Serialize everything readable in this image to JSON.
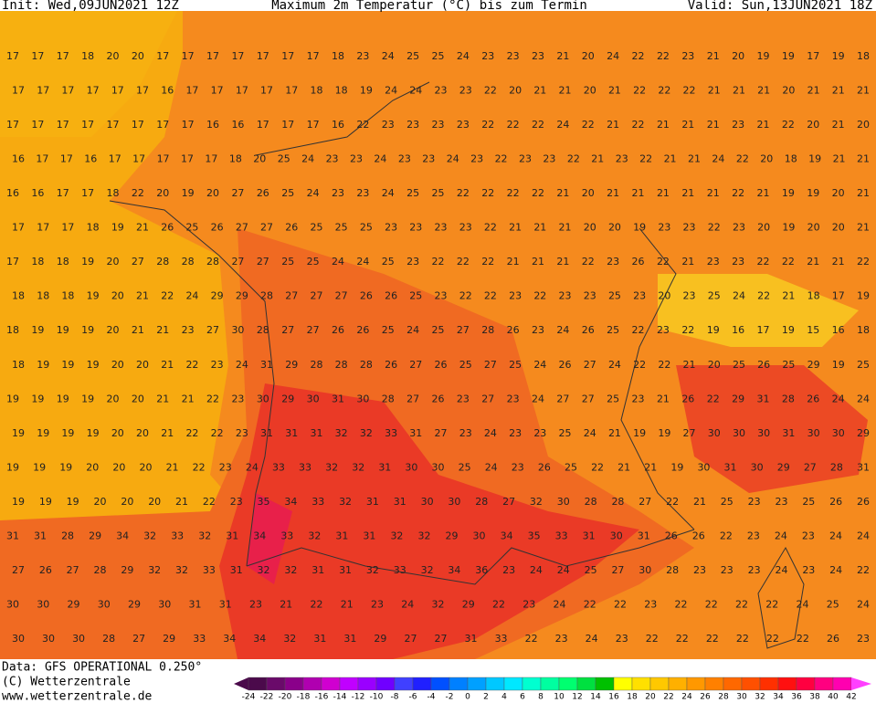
{
  "header": {
    "init": "Init: Wed,09JUN2021 12Z",
    "title": "Maximum 2m Temperatur (°C) bis zum Termin",
    "valid": "Valid: Sun,13JUN2021 18Z"
  },
  "footer": {
    "data": "Data: GFS OPERATIONAL 0.250°",
    "copyright": "(C) Wetterzentrale",
    "url": "www.wetterzentrale.de"
  },
  "map": {
    "rows": [
      [
        17,
        17,
        17,
        18,
        20,
        20,
        17,
        17,
        17,
        17,
        17,
        17,
        17,
        18,
        23,
        24,
        25,
        25,
        24,
        23,
        23,
        23,
        21,
        20,
        24,
        22,
        22,
        23,
        21,
        20,
        19,
        19,
        17,
        19,
        18
      ],
      [
        17,
        17,
        17,
        17,
        17,
        17,
        16,
        17,
        17,
        17,
        17,
        17,
        18,
        18,
        19,
        24,
        24,
        23,
        23,
        22,
        20,
        21,
        21,
        20,
        21,
        22,
        22,
        22,
        21,
        21,
        21,
        20,
        21,
        21,
        21
      ],
      [
        17,
        17,
        17,
        17,
        17,
        17,
        17,
        17,
        16,
        16,
        17,
        17,
        17,
        16,
        22,
        23,
        23,
        23,
        23,
        22,
        22,
        22,
        24,
        22,
        21,
        22,
        21,
        21,
        21,
        23,
        21,
        22,
        20,
        21,
        20
      ],
      [
        16,
        17,
        17,
        16,
        17,
        17,
        17,
        17,
        17,
        18,
        20,
        25,
        24,
        23,
        23,
        24,
        23,
        23,
        24,
        23,
        22,
        23,
        23,
        22,
        21,
        23,
        22,
        21,
        21,
        24,
        22,
        20,
        18,
        19,
        21,
        21
      ],
      [
        16,
        16,
        17,
        17,
        18,
        22,
        20,
        19,
        20,
        27,
        26,
        25,
        24,
        23,
        23,
        24,
        25,
        25,
        22,
        22,
        22,
        22,
        21,
        20,
        21,
        21,
        21,
        21,
        21,
        22,
        21,
        19,
        19,
        20,
        21
      ],
      [
        17,
        17,
        17,
        18,
        19,
        21,
        26,
        25,
        26,
        27,
        27,
        26,
        25,
        25,
        25,
        23,
        23,
        23,
        23,
        22,
        21,
        21,
        21,
        20,
        20,
        19,
        23,
        23,
        22,
        23,
        20,
        19,
        20,
        20,
        21
      ],
      [
        17,
        18,
        18,
        19,
        20,
        27,
        28,
        28,
        28,
        27,
        27,
        25,
        25,
        24,
        24,
        25,
        23,
        22,
        22,
        22,
        21,
        21,
        21,
        22,
        23,
        26,
        22,
        21,
        23,
        23,
        22,
        22,
        21,
        21,
        22
      ],
      [
        18,
        18,
        18,
        19,
        20,
        21,
        22,
        24,
        29,
        29,
        28,
        27,
        27,
        27,
        26,
        26,
        25,
        23,
        22,
        22,
        23,
        22,
        23,
        23,
        25,
        23,
        20,
        23,
        25,
        24,
        22,
        21,
        18,
        17,
        19
      ],
      [
        18,
        19,
        19,
        19,
        20,
        21,
        21,
        23,
        27,
        30,
        28,
        27,
        27,
        26,
        26,
        25,
        24,
        25,
        27,
        28,
        26,
        23,
        24,
        26,
        25,
        22,
        23,
        22,
        19,
        16,
        17,
        19,
        15,
        16,
        18
      ],
      [
        18,
        19,
        19,
        19,
        20,
        20,
        21,
        22,
        23,
        24,
        31,
        29,
        28,
        28,
        28,
        26,
        27,
        26,
        25,
        27,
        25,
        24,
        26,
        27,
        24,
        22,
        22,
        21,
        20,
        25,
        26,
        25,
        29,
        19,
        25
      ],
      [
        19,
        19,
        19,
        19,
        20,
        20,
        21,
        21,
        22,
        23,
        30,
        29,
        30,
        31,
        30,
        28,
        27,
        26,
        23,
        27,
        23,
        24,
        27,
        27,
        25,
        23,
        21,
        26,
        22,
        29,
        31,
        28,
        26,
        24,
        24
      ],
      [
        19,
        19,
        19,
        19,
        20,
        20,
        21,
        22,
        22,
        23,
        31,
        31,
        31,
        32,
        32,
        33,
        31,
        27,
        23,
        24,
        23,
        23,
        25,
        24,
        21,
        19,
        19,
        27,
        30,
        30,
        30,
        31,
        30,
        30,
        29
      ],
      [
        19,
        19,
        19,
        20,
        20,
        20,
        21,
        22,
        23,
        24,
        33,
        33,
        32,
        32,
        31,
        30,
        30,
        25,
        24,
        23,
        26,
        25,
        22,
        21,
        21,
        19,
        30,
        31,
        30,
        29,
        27,
        28,
        31
      ],
      [
        19,
        19,
        19,
        20,
        20,
        20,
        21,
        22,
        23,
        35,
        34,
        33,
        32,
        31,
        31,
        30,
        30,
        28,
        27,
        32,
        30,
        28,
        28,
        27,
        22,
        21,
        25,
        23,
        23,
        25,
        26,
        26
      ],
      [
        31,
        31,
        28,
        29,
        34,
        32,
        33,
        32,
        31,
        34,
        33,
        32,
        31,
        31,
        32,
        32,
        29,
        30,
        34,
        35,
        33,
        31,
        30,
        31,
        26,
        26,
        22,
        23,
        24,
        23,
        24,
        24
      ],
      [
        27,
        26,
        27,
        28,
        29,
        32,
        32,
        33,
        31,
        32,
        32,
        31,
        31,
        32,
        33,
        32,
        34,
        36,
        23,
        24,
        24,
        25,
        27,
        30,
        28,
        23,
        23,
        23,
        24,
        23,
        24,
        22
      ],
      [
        30,
        30,
        29,
        30,
        29,
        30,
        31,
        31,
        23,
        21,
        22,
        21,
        23,
        24,
        32,
        29,
        22,
        23,
        24,
        22,
        22,
        23,
        22,
        22,
        22,
        22,
        24,
        25,
        24
      ],
      [
        30,
        30,
        30,
        28,
        27,
        29,
        33,
        34,
        34,
        32,
        31,
        31,
        29,
        27,
        27,
        31,
        33,
        22,
        23,
        24,
        23,
        22,
        22,
        22,
        22,
        22,
        22,
        26,
        23
      ]
    ]
  },
  "legend": {
    "ticks": [
      -24,
      -22,
      -20,
      -18,
      -16,
      -14,
      -12,
      -10,
      -8,
      -6,
      -4,
      -2,
      0,
      2,
      4,
      6,
      8,
      10,
      12,
      14,
      16,
      18,
      20,
      22,
      24,
      26,
      28,
      30,
      32,
      34,
      36,
      38,
      40,
      42
    ],
    "colors": [
      "#4b0a4b",
      "#6a0a6a",
      "#8a008a",
      "#b000b0",
      "#d000d0",
      "#c000ff",
      "#9a00ff",
      "#7000ff",
      "#4040ff",
      "#2020ff",
      "#0050ff",
      "#0080ff",
      "#00a0ff",
      "#00c8ff",
      "#00e8ff",
      "#00ffd0",
      "#00ffa0",
      "#00ff70",
      "#00e040",
      "#00c000",
      "#ffff00",
      "#ffe000",
      "#ffc800",
      "#ffb000",
      "#ff9800",
      "#ff8000",
      "#ff6800",
      "#ff5000",
      "#ff3000",
      "#ff1010",
      "#ff0040",
      "#ff0080",
      "#ff00b0"
    ]
  }
}
